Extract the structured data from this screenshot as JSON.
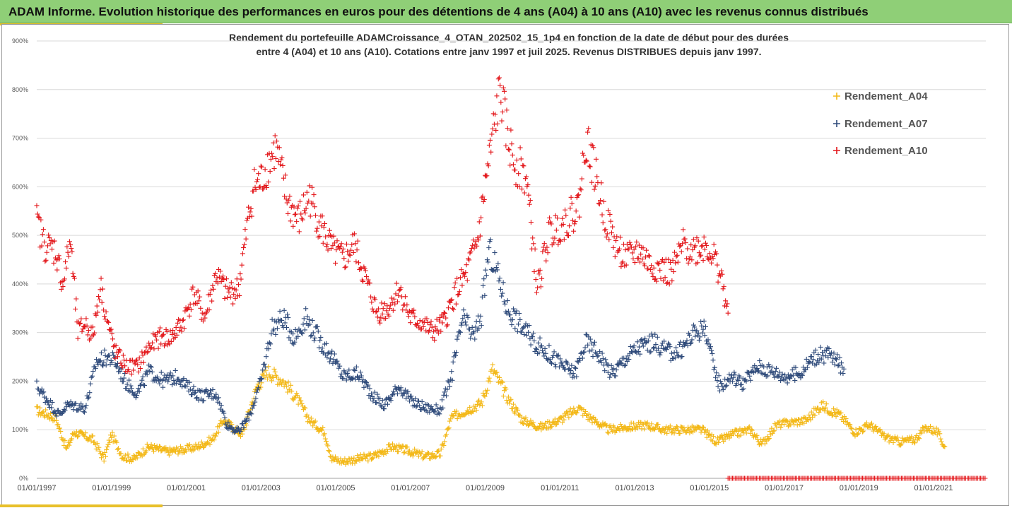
{
  "header": {
    "title": "ADAM Informe. Evolution historique des performances en euros pour des détentions de 4 ans (A04) à 10 ans (A10) avec les revenus connus distribués"
  },
  "colors": {
    "header_bg": "#8fcf77",
    "accent": "#e8c02a",
    "A04": "#f3b817",
    "A07": "#2e4a7a",
    "A10": "#e3171b"
  },
  "chart_data": {
    "type": "scatter",
    "title_line1": "Rendement du portefeuille ADAMCroissance_4_OTAN_202502_15_1p4  en fonction de la date de début pour des durées",
    "title_line2": "entre 4 (A04) et 10 ans (A10). Cotations entre janv 1997 et juil 2025. Revenus DISTRIBUES depuis janv 1997.",
    "y_ticks": [
      "0%",
      "100%",
      "200%",
      "300%",
      "400%",
      "500%",
      "600%",
      "700%",
      "800%",
      "900%"
    ],
    "ylim": [
      0,
      900
    ],
    "x_ticks": [
      "01/01/1997",
      "01/01/1999",
      "01/01/2001",
      "01/01/2003",
      "01/01/2005",
      "01/01/2007",
      "01/01/2009",
      "01/01/2011",
      "01/01/2013",
      "01/01/2015",
      "01/01/2017",
      "01/01/2019",
      "01/01/2021"
    ],
    "xlim": [
      1997.0,
      2022.4
    ],
    "grid": "horizontal",
    "legend_position": "right",
    "legend": [
      "Rendement_A04",
      "Rendement_A07",
      "Rendement_A10"
    ],
    "series": [
      {
        "name": "Rendement_A04",
        "x": [
          1997.0,
          1997.5,
          1997.8,
          1998.0,
          1998.5,
          1998.8,
          1999.0,
          1999.3,
          1999.6,
          2000.0,
          2000.5,
          2001.0,
          2001.3,
          2001.7,
          2002.0,
          2002.5,
          2002.9,
          2003.2,
          2003.6,
          2004.0,
          2004.3,
          2004.7,
          2004.9,
          2005.2,
          2005.6,
          2006.0,
          2006.5,
          2007.0,
          2007.4,
          2007.8,
          2008.1,
          2008.5,
          2008.9,
          2009.2,
          2009.6,
          2010.0,
          2010.5,
          2011.0,
          2011.5,
          2011.8,
          2012.3,
          2012.8,
          2013.3,
          2013.8,
          2014.3,
          2014.8,
          2015.2,
          2015.6,
          2016.1,
          2016.4,
          2016.8,
          2017.2,
          2017.6,
          2018.0,
          2018.5,
          2018.9,
          2019.3,
          2019.7,
          2020.1,
          2020.5,
          2020.8,
          2021.1,
          2021.3
        ],
        "y": [
          140,
          125,
          60,
          95,
          80,
          40,
          90,
          45,
          40,
          65,
          55,
          60,
          65,
          80,
          120,
          90,
          190,
          220,
          200,
          160,
          120,
          95,
          40,
          35,
          40,
          45,
          65,
          55,
          45,
          50,
          125,
          140,
          155,
          225,
          165,
          120,
          105,
          120,
          145,
          125,
          100,
          105,
          110,
          100,
          100,
          100,
          75,
          90,
          100,
          70,
          110,
          115,
          120,
          150,
          130,
          95,
          110,
          85,
          75,
          80,
          105,
          95,
          65
        ]
      },
      {
        "name": "Rendement_A07",
        "x": [
          1997.0,
          1997.3,
          1997.6,
          1997.8,
          1998.0,
          1998.3,
          1998.6,
          1998.9,
          1999.1,
          1999.4,
          1999.7,
          2000.0,
          2000.4,
          2000.8,
          2001.0,
          2001.4,
          2001.8,
          2002.1,
          2002.4,
          2002.7,
          2003.0,
          2003.3,
          2003.6,
          2003.9,
          2004.2,
          2004.6,
          2004.9,
          2005.2,
          2005.6,
          2006.0,
          2006.3,
          2006.7,
          2007.0,
          2007.4,
          2007.8,
          2008.1,
          2008.4,
          2008.7,
          2008.9,
          2009.1,
          2009.3,
          2009.6,
          2010.0,
          2010.4,
          2010.8,
          2011.1,
          2011.4,
          2011.7,
          2012.0,
          2012.4,
          2012.8,
          2013.1,
          2013.5,
          2013.9,
          2014.2,
          2014.6,
          2014.9,
          2015.1,
          2015.3,
          2015.6,
          2015.9,
          2016.3,
          2016.7,
          2017.0,
          2017.4,
          2017.8,
          2018.2,
          2018.6
        ],
        "y": [
          190,
          160,
          130,
          150,
          150,
          145,
          240,
          250,
          240,
          195,
          175,
          220,
          200,
          210,
          190,
          170,
          175,
          110,
          95,
          130,
          200,
          310,
          330,
          290,
          330,
          280,
          250,
          210,
          215,
          170,
          150,
          190,
          160,
          145,
          140,
          210,
          330,
          290,
          340,
          470,
          430,
          350,
          310,
          275,
          250,
          230,
          215,
          280,
          260,
          215,
          250,
          270,
          280,
          260,
          260,
          300,
          310,
          230,
          190,
          210,
          195,
          230,
          220,
          210,
          215,
          250,
          255,
          225
        ]
      },
      {
        "name": "Rendement_A10",
        "x": [
          1997.0,
          1997.2,
          1997.5,
          1997.7,
          1997.9,
          1998.1,
          1998.3,
          1998.5,
          1998.7,
          1998.9,
          1999.1,
          1999.4,
          1999.7,
          2000.0,
          2000.3,
          2000.6,
          2000.9,
          2001.2,
          2001.5,
          2001.8,
          2002.1,
          2002.4,
          2002.6,
          2002.8,
          2003.0,
          2003.2,
          2003.4,
          2003.7,
          2004.0,
          2004.3,
          2004.6,
          2004.9,
          2005.2,
          2005.5,
          2005.8,
          2006.1,
          2006.4,
          2006.7,
          2007.0,
          2007.3,
          2007.6,
          2007.9,
          2008.2,
          2008.5,
          2008.8,
          2009.0,
          2009.2,
          2009.4,
          2009.6,
          2009.8,
          2010.1,
          2010.4,
          2010.7,
          2011.0,
          2011.3,
          2011.5,
          2011.7,
          2011.9,
          2012.2,
          2012.5,
          2012.8,
          2013.1,
          2013.4,
          2013.7,
          2014.0,
          2014.3,
          2014.6,
          2014.9,
          2015.1,
          2015.3,
          2015.5
        ],
        "y": [
          530,
          480,
          470,
          400,
          490,
          300,
          320,
          290,
          400,
          320,
          260,
          230,
          230,
          270,
          290,
          290,
          320,
          380,
          330,
          420,
          380,
          390,
          500,
          600,
          610,
          650,
          680,
          570,
          530,
          580,
          520,
          470,
          450,
          480,
          410,
          340,
          350,
          390,
          330,
          320,
          300,
          320,
          380,
          420,
          490,
          600,
          700,
          800,
          700,
          650,
          620,
          390,
          500,
          520,
          540,
          560,
          700,
          640,
          540,
          480,
          450,
          470,
          440,
          430,
          420,
          480,
          470,
          480,
          460,
          420,
          340
        ]
      }
    ],
    "zero_line_markers": {
      "series": "Rendement_A10",
      "x_start": 2015.5,
      "x_end": 2022.4,
      "y": 0
    }
  }
}
